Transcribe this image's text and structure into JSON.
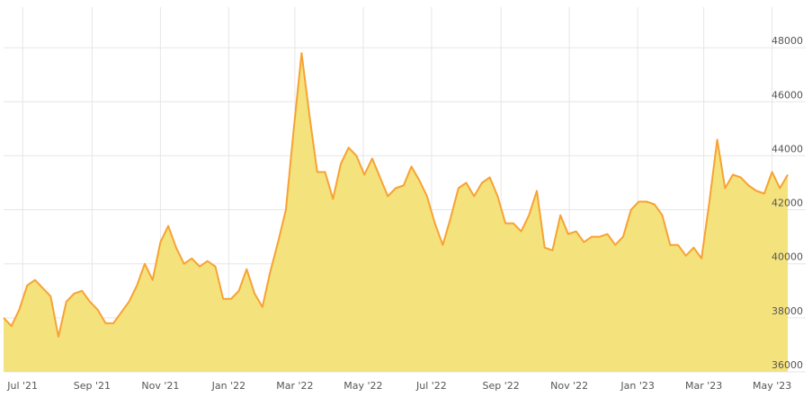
{
  "chart_data": {
    "type": "area",
    "series": [
      {
        "x": [
          "2021-06-14",
          "2021-06-21",
          "2021-06-28",
          "2021-07-05",
          "2021-07-12",
          "2021-07-19",
          "2021-07-26",
          "2021-08-02",
          "2021-08-09",
          "2021-08-16",
          "2021-08-23",
          "2021-08-30",
          "2021-09-06",
          "2021-09-13",
          "2021-09-20",
          "2021-09-27",
          "2021-10-04",
          "2021-10-11",
          "2021-10-18",
          "2021-10-25",
          "2021-11-01",
          "2021-11-08",
          "2021-11-15",
          "2021-11-22",
          "2021-11-29",
          "2021-12-06",
          "2021-12-13",
          "2021-12-20",
          "2021-12-27",
          "2022-01-03",
          "2022-01-10",
          "2022-01-17",
          "2022-01-24",
          "2022-01-31",
          "2022-02-07",
          "2022-02-14",
          "2022-02-21",
          "2022-02-28",
          "2022-03-07",
          "2022-03-14",
          "2022-03-21",
          "2022-03-28",
          "2022-04-04",
          "2022-04-11",
          "2022-04-18",
          "2022-04-25",
          "2022-05-02",
          "2022-05-09",
          "2022-05-16",
          "2022-05-23",
          "2022-05-30",
          "2022-06-06",
          "2022-06-13",
          "2022-06-20",
          "2022-06-27",
          "2022-07-04",
          "2022-07-11",
          "2022-07-18",
          "2022-07-25",
          "2022-08-01",
          "2022-08-08",
          "2022-08-15",
          "2022-08-22",
          "2022-08-29",
          "2022-09-05",
          "2022-09-12",
          "2022-09-19",
          "2022-09-26",
          "2022-10-03",
          "2022-10-10",
          "2022-10-17",
          "2022-10-24",
          "2022-10-31",
          "2022-11-07",
          "2022-11-14",
          "2022-11-21",
          "2022-11-28",
          "2022-12-05",
          "2022-12-12",
          "2022-12-19",
          "2022-12-26",
          "2023-01-02",
          "2023-01-09",
          "2023-01-16",
          "2023-01-23",
          "2023-01-30",
          "2023-02-06",
          "2023-02-13",
          "2023-02-20",
          "2023-02-27",
          "2023-03-06",
          "2023-03-13",
          "2023-03-20",
          "2023-03-27",
          "2023-04-03",
          "2023-04-10",
          "2023-04-17",
          "2023-04-24",
          "2023-05-01",
          "2023-05-08",
          "2023-05-15"
        ],
        "values": [
          38000,
          37700,
          38300,
          39200,
          39400,
          39100,
          38800,
          37300,
          38600,
          38900,
          39000,
          38600,
          38300,
          37800,
          37800,
          38200,
          38600,
          39200,
          40000,
          39400,
          40800,
          41400,
          40600,
          40000,
          40200,
          39900,
          40100,
          39900,
          38700,
          38700,
          39000,
          39800,
          38900,
          38400,
          39700,
          40800,
          42000,
          45000,
          47800,
          45500,
          43400,
          43400,
          42400,
          43700,
          44300,
          44000,
          43300,
          43900,
          43200,
          42500,
          42800,
          42900,
          43600,
          43100,
          42500,
          41500,
          40700,
          41700,
          42800,
          43000,
          42500,
          43000,
          43200,
          42500,
          41500,
          41500,
          41200,
          41800,
          42700,
          40600,
          40500,
          41800,
          41100,
          41200,
          40800,
          41000,
          41000,
          41100,
          40700,
          41000,
          42000,
          42300,
          42300,
          42200,
          41800,
          40700,
          40700,
          40300,
          40600,
          40200,
          42300,
          44600,
          42800,
          43300,
          43200,
          42900,
          42700,
          42600,
          43400,
          42800,
          43300
        ]
      }
    ],
    "x_ticks": [
      "Jul '21",
      "Sep '21",
      "Nov '21",
      "Jan '22",
      "Mar '22",
      "May '22",
      "Jul '22",
      "Sep '22",
      "Nov '22",
      "Jan '23",
      "Mar '23",
      "May '23"
    ],
    "y_ticks": [
      "36000",
      "38000",
      "40000",
      "42000",
      "44000",
      "46000",
      "48000"
    ],
    "ylim": [
      36000,
      49500
    ],
    "grid": true,
    "line_color": "#f7a234",
    "fill_color": "#f4e27c"
  }
}
